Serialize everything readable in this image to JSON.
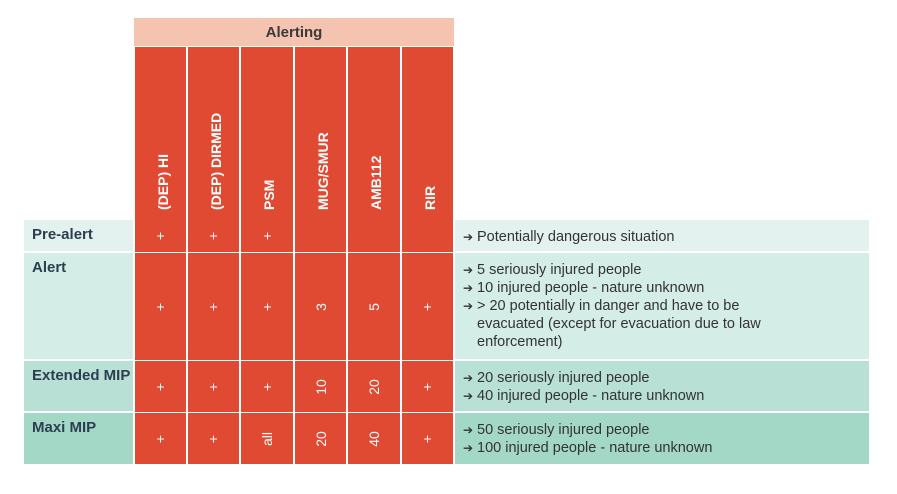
{
  "table": {
    "group_header": "Alerting",
    "columns": [
      "(DEP) HI",
      "(DEP) DIRMED",
      "PSM",
      "MUG/SMUR",
      "AMB112",
      "RIR"
    ],
    "rows": [
      {
        "label": "Pre-alert",
        "marks": [
          "+",
          "+",
          "+",
          "",
          "",
          ""
        ],
        "criteria": [
          "Potentially dangerous situation"
        ]
      },
      {
        "label": "Alert",
        "marks": [
          "+",
          "+",
          "+",
          "3",
          "5",
          "+"
        ],
        "criteria": [
          "5 seriously injured people",
          "10 injured people - nature unknown",
          "> 20 potentially in danger and have to be evacuated (except for evacuation due to law enforcement)"
        ]
      },
      {
        "label": "Extended MIP",
        "marks": [
          "+",
          "+",
          "+",
          "10",
          "20",
          "+"
        ],
        "criteria": [
          "20 seriously injured people",
          "40 injured people - nature unknown"
        ]
      },
      {
        "label": "Maxi MIP",
        "marks": [
          "+",
          "+",
          "all",
          "20",
          "40",
          "+"
        ],
        "criteria": [
          "50 seriously injured people",
          "100 injured people - nature unknown"
        ]
      }
    ],
    "arrow_icon": "➔",
    "colors": {
      "alerting_header": "#f4c4b0",
      "red": "#e04a33",
      "teal_1": "#e3f2ee",
      "teal_2": "#d4ede6",
      "teal_3": "#b8e0d4",
      "teal_4": "#a3d8c7"
    }
  }
}
